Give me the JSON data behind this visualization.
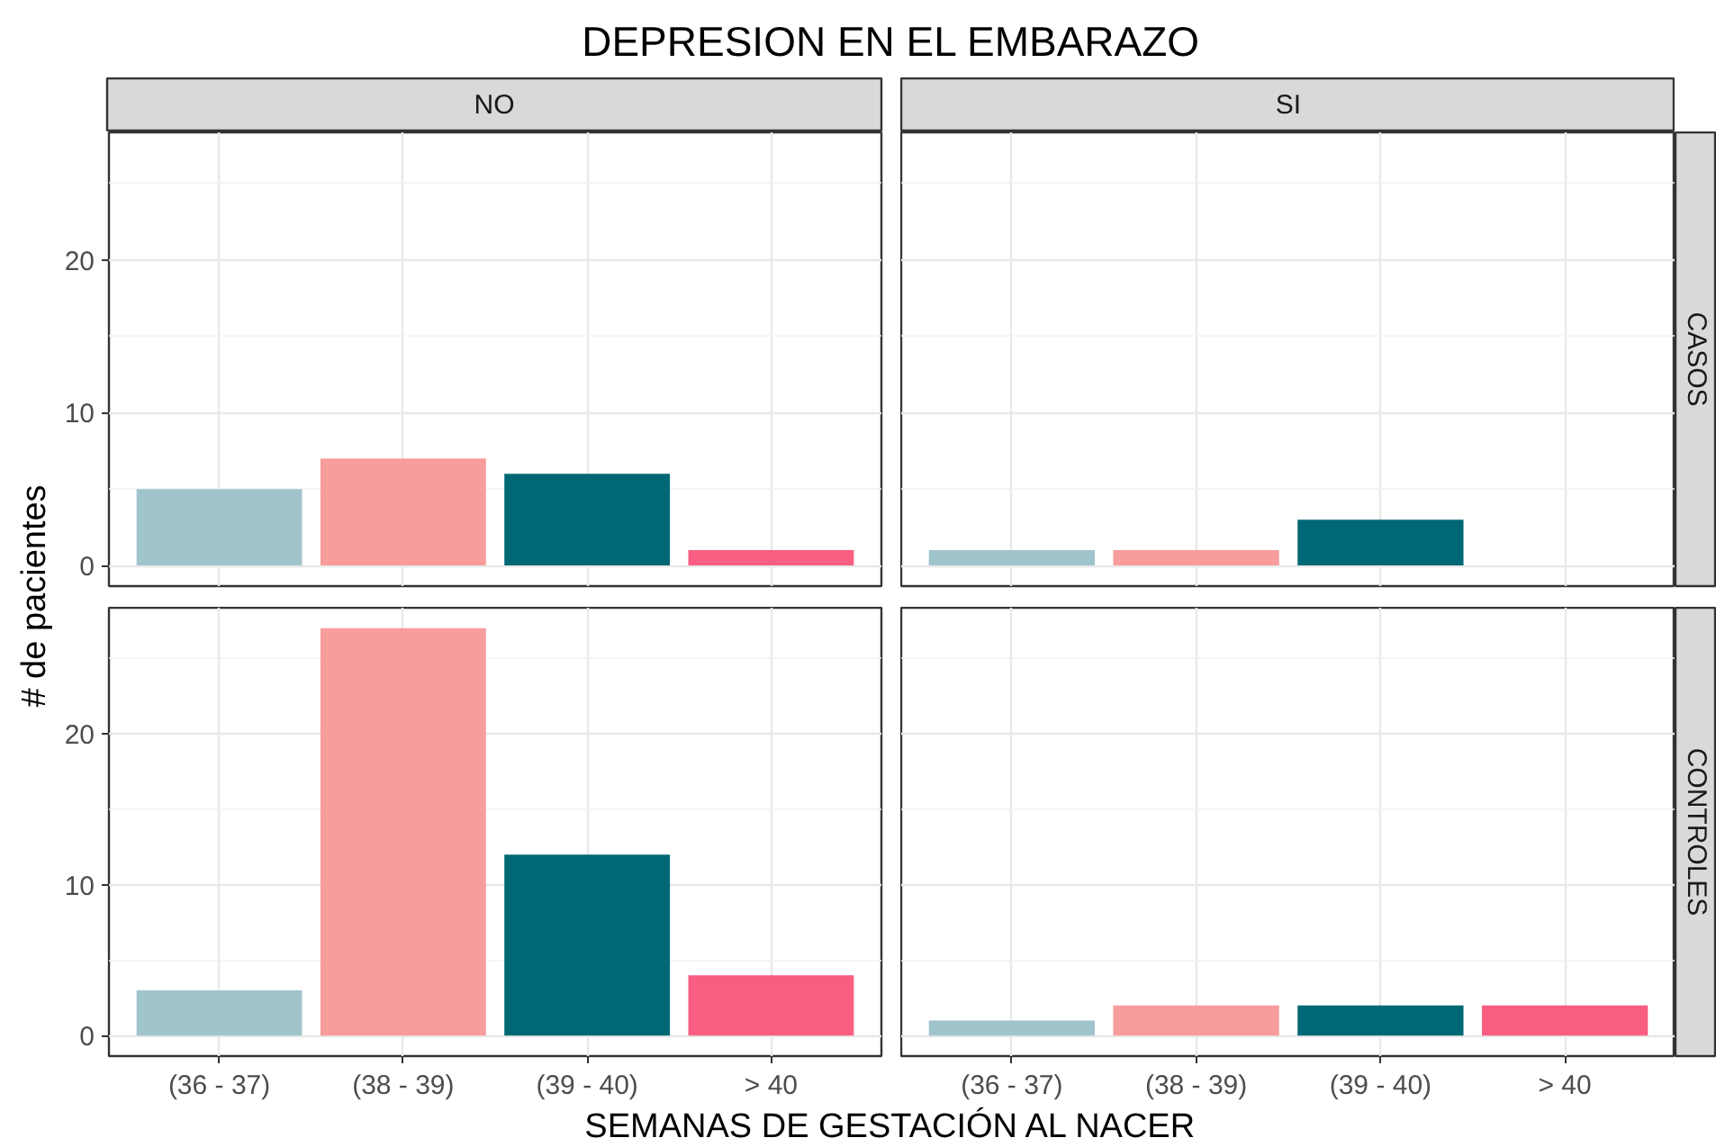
{
  "chart_data": [
    {
      "type": "bar",
      "title": "DEPRESION EN EL EMBARAZO",
      "subtitle": "NO",
      "ylabel": "# de pacientes",
      "categories": [
        "(36 - 37)",
        "(38 - 39)",
        "(39 - 40)",
        "> 40"
      ],
      "values": [
        5,
        7,
        6,
        1
      ],
      "colors": [
        "#a0c4cb",
        "#f89c9c",
        "#006875",
        "#f95d81"
      ],
      "ylim": [
        -1.35,
        28.35
      ],
      "yticks": [
        0,
        10,
        20
      ],
      "grid": true,
      "tick_labels": "y"
    },
    {
      "type": "bar",
      "subtitle": "SI",
      "y2label": "CASOS",
      "categories": [
        "(36 - 37)",
        "(38 - 39)",
        "(39 - 40)",
        "> 40"
      ],
      "values": [
        1,
        1,
        3,
        null
      ],
      "colors": [
        "#a0c4cb",
        "#f89c9c",
        "#006875",
        "#f95d81"
      ],
      "ylim": [
        -1.35,
        28.35
      ],
      "yticks": [
        0,
        10,
        20
      ],
      "grid": true,
      "tick_labels": false
    },
    {
      "type": "bar",
      "xlabel": "SEMANAS DE GESTACIÓN AL NACER",
      "categories": [
        "(36 - 37)",
        "(38 - 39)",
        "(39 - 40)",
        "> 40"
      ],
      "values": [
        3,
        27,
        12,
        4
      ],
      "colors": [
        "#a0c4cb",
        "#f89c9c",
        "#006875",
        "#f95d81"
      ],
      "ylim": [
        -1.35,
        28.35
      ],
      "yticks": [
        0,
        10,
        20
      ],
      "grid": true
    },
    {
      "type": "bar",
      "y2label": "CONTROLES",
      "categories": [
        "(36 - 37)",
        "(38 - 39)",
        "(39 - 40)",
        "> 40"
      ],
      "values": [
        1,
        2,
        2,
        2
      ],
      "colors": [
        "#a0c4cb",
        "#f89c9c",
        "#006875",
        "#f95d81"
      ],
      "ylim": [
        -1.35,
        28.35
      ],
      "yticks": [
        0,
        10,
        20
      ],
      "grid": true,
      "tick_labels": "x"
    }
  ]
}
